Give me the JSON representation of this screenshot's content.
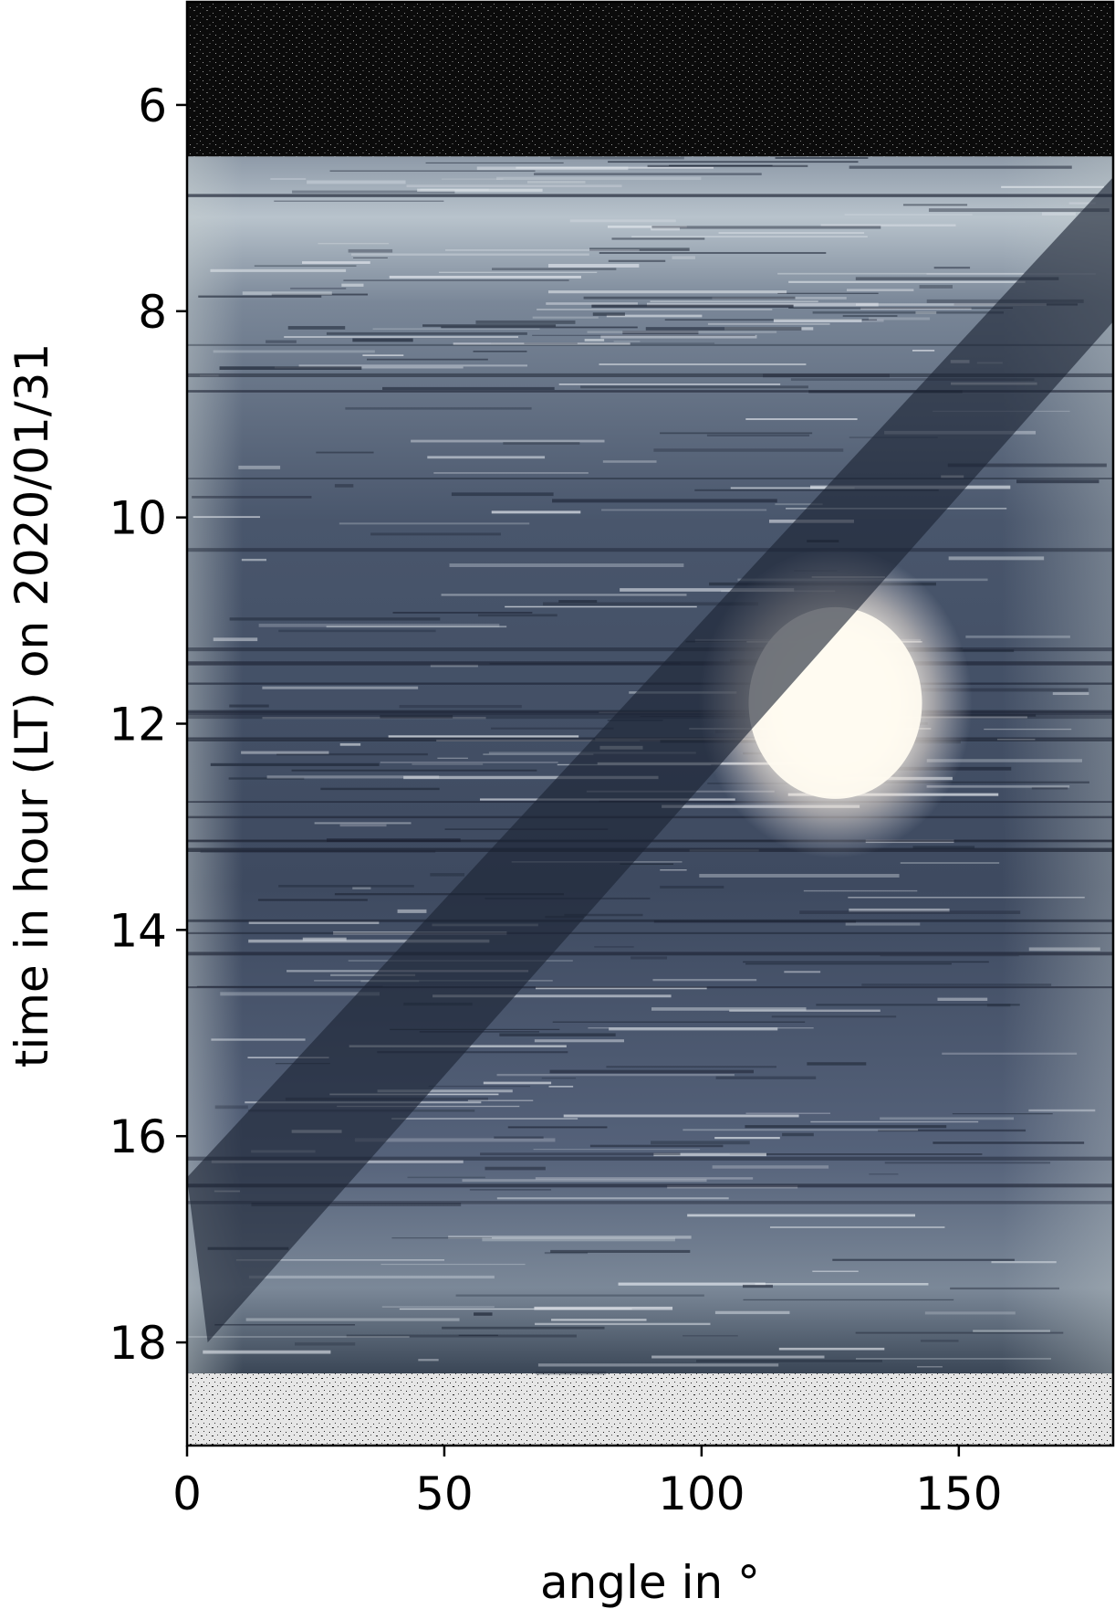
{
  "chart_data": {
    "type": "heatmap",
    "title": "",
    "xlabel": "angle in °",
    "ylabel": "time in hour (LT) on 2020/01/31",
    "xlim": [
      0,
      180
    ],
    "ylim": [
      19.0,
      5.0
    ],
    "y_inverted": true,
    "x_ticks": [
      0,
      50,
      100,
      150
    ],
    "y_ticks": [
      6,
      8,
      10,
      12,
      14,
      16,
      18
    ],
    "x_tick_labels": [
      "0",
      "50",
      "100",
      "150"
    ],
    "y_tick_labels": [
      "6",
      "8",
      "10",
      "12",
      "14",
      "16",
      "18"
    ],
    "grid": false,
    "legend": "none",
    "night_periods_hours": [
      [
        5.0,
        6.5
      ],
      [
        18.3,
        19.0
      ]
    ],
    "daylight_period_hours": [
      6.5,
      18.3
    ],
    "sun_position": {
      "angle_deg": 126,
      "time_hour": 11.8
    },
    "shadow_band": {
      "upper_edge": [
        [
          180,
          6.7
        ],
        [
          0,
          16.4
        ]
      ],
      "lower_edge": [
        [
          180,
          8.1
        ],
        [
          4,
          18.0
        ]
      ]
    },
    "colors": {
      "night": "#0d0d0d",
      "sky": "#4a5870",
      "shadow": "#1c2333",
      "sun": "#fffbf0",
      "after_dusk": "#e4e4e4"
    }
  }
}
